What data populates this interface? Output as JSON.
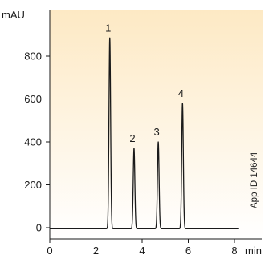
{
  "chart_data": {
    "type": "line",
    "x_unit": "min",
    "y_unit": "mAU",
    "xlim": [
      0,
      8.2
    ],
    "ylim": [
      -30,
      1000
    ],
    "x_ticks": [
      0,
      2,
      4,
      6,
      8
    ],
    "y_ticks": [
      0,
      200,
      400,
      600,
      800
    ],
    "baseline": -5,
    "peaks": [
      {
        "label": "1",
        "time": 2.6,
        "height": 890
      },
      {
        "label": "2",
        "time": 3.65,
        "height": 375
      },
      {
        "label": "3",
        "time": 4.7,
        "height": 405
      },
      {
        "label": "4",
        "time": 5.75,
        "height": 585
      }
    ],
    "line_color": "#1a1a1a",
    "background_gradient": [
      "#fde9c4",
      "#ffffff"
    ],
    "grid": false,
    "annotation": "App ID 14644"
  }
}
